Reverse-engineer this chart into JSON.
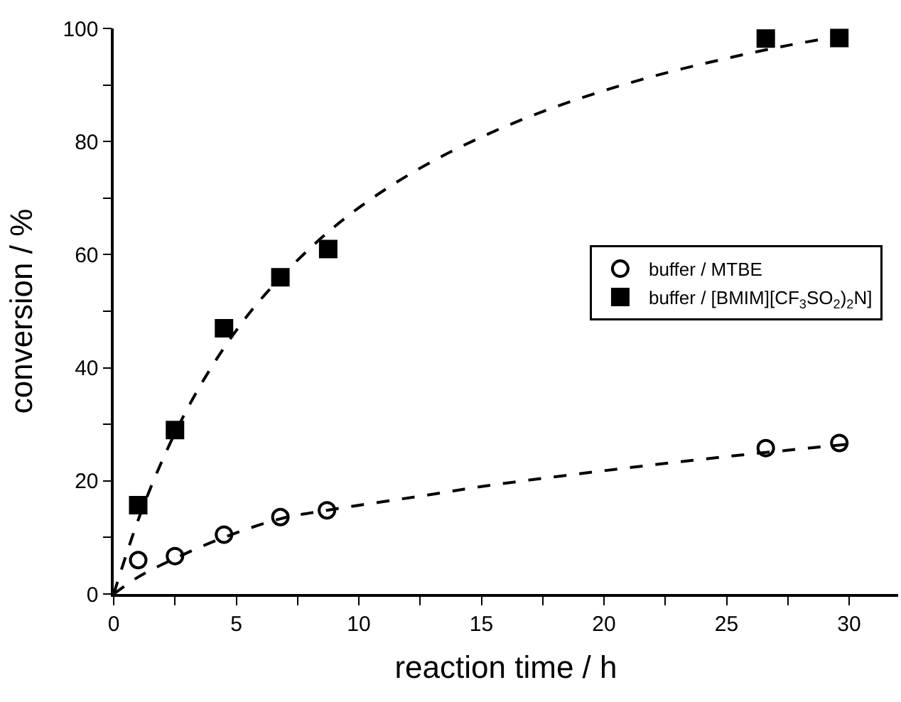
{
  "chart_data": {
    "type": "scatter",
    "xlabel": "reaction time / h",
    "ylabel": "conversion / %",
    "xlim": [
      0,
      32
    ],
    "ylim": [
      0,
      100
    ],
    "xticks": [
      0,
      {
        "value": 2.5,
        "label": null
      },
      5,
      {
        "value": 7.5,
        "label": null
      },
      10,
      {
        "value": 12.5,
        "label": null
      },
      15,
      {
        "value": 17.5,
        "label": null
      },
      20,
      {
        "value": 22.5,
        "label": null
      },
      25,
      {
        "value": 27.5,
        "label": null
      },
      30
    ],
    "yticks": [
      0,
      {
        "value": 10,
        "label": null
      },
      20,
      {
        "value": 30,
        "label": null
      },
      40,
      {
        "value": 50,
        "label": null
      },
      60,
      {
        "value": 70,
        "label": null
      },
      80,
      {
        "value": 90,
        "label": null
      },
      100
    ],
    "legend": "right",
    "series": [
      {
        "name": "buffer / MTBE",
        "marker": "circle-open",
        "color": "#000000",
        "x": [
          1.0,
          2.5,
          4.5,
          6.8,
          8.7,
          26.6,
          29.6
        ],
        "values": [
          6.0,
          6.7,
          10.5,
          13.6,
          14.8,
          25.8,
          26.7
        ]
      },
      {
        "name": "buffer / [BMIM][CF$_{3}$SO$_{2}$)$_{2}$N]",
        "marker": "square",
        "color": "#000000",
        "x": [
          1.0,
          2.5,
          4.5,
          6.8,
          8.75,
          26.6,
          29.6
        ],
        "values": [
          15.7,
          29,
          47,
          56,
          61,
          98.2,
          98.3
        ]
      },
      {
        "type": "line",
        "line_style": "dashed",
        "color": "#000000",
        "x": [
          0,
          1,
          2.5,
          4.5,
          6.8,
          8.7,
          12.8,
          15,
          20,
          25,
          30
        ],
        "values": [
          0,
          3,
          6.3,
          10,
          13.3,
          14.8,
          17.5,
          19,
          21.8,
          24.3,
          26.5
        ]
      },
      {
        "type": "line",
        "line_style": "dashed",
        "color": "#000000",
        "x": [
          0,
          1,
          2,
          3,
          4,
          5,
          6,
          8,
          10,
          12.5,
          15,
          17.5,
          20,
          22.5,
          25,
          27.5,
          30
        ],
        "values": [
          0,
          13.1,
          23.8,
          32.7,
          40.2,
          46.6,
          52.1,
          61.1,
          68.3,
          75.3,
          80.8,
          85.3,
          89.0,
          92.1,
          94.7,
          97.0,
          98.9
        ]
      }
    ]
  }
}
